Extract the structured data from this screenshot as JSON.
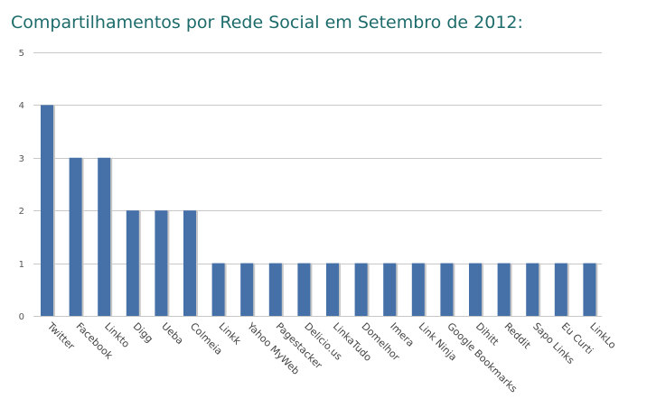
{
  "chart_data": {
    "type": "bar",
    "title": "Compartilhamentos por Rede Social em Setembro de 2012:",
    "xlabel": "",
    "ylabel": "",
    "ylim": [
      0,
      5
    ],
    "yticks": [
      0,
      1,
      2,
      3,
      4,
      5
    ],
    "grid": true,
    "categories": [
      "Twitter",
      "Facebook",
      "Linkto",
      "Digg",
      "Ueba",
      "Colmeia",
      "Linkk",
      "Yahoo MyWeb",
      "Pagestacker",
      "Delicio.us",
      "LinkaTudo",
      "Domelhor",
      "Imera",
      "Link Ninja",
      "Google Bookmarks",
      "Dihitt",
      "Reddit",
      "Sapo Links",
      "Eu Curti",
      "LinkLo"
    ],
    "values": [
      4,
      3,
      3,
      2,
      2,
      2,
      1,
      1,
      1,
      1,
      1,
      1,
      1,
      1,
      1,
      1,
      1,
      1,
      1,
      1
    ],
    "colors": {
      "bar": "#4570a8",
      "bar_shadow": "#c7c7c7",
      "grid": "#c8c8c8",
      "title": "#1d6b6b"
    }
  }
}
